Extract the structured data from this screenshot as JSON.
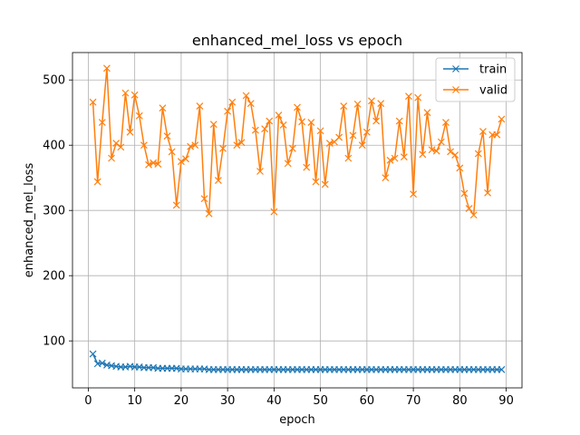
{
  "chart_data": {
    "type": "line",
    "title": "enhanced_mel_loss vs epoch",
    "xlabel": "epoch",
    "ylabel": "enhanced_mel_loss",
    "xlim": [
      -3.4,
      93.4
    ],
    "ylim": [
      28,
      542
    ],
    "xticks": [
      0,
      10,
      20,
      30,
      40,
      50,
      60,
      70,
      80,
      90
    ],
    "yticks": [
      100,
      200,
      300,
      400,
      500
    ],
    "grid": true,
    "legend_position": "top-right",
    "marker": "x",
    "series": [
      {
        "name": "train",
        "color": "#1f77b4",
        "x": [
          1,
          2,
          3,
          4,
          5,
          6,
          7,
          8,
          9,
          10,
          11,
          12,
          13,
          14,
          15,
          16,
          17,
          18,
          19,
          20,
          21,
          22,
          23,
          24,
          25,
          26,
          27,
          28,
          29,
          30,
          31,
          32,
          33,
          34,
          35,
          36,
          37,
          38,
          39,
          40,
          41,
          42,
          43,
          44,
          45,
          46,
          47,
          48,
          49,
          50,
          51,
          52,
          53,
          54,
          55,
          56,
          57,
          58,
          59,
          60,
          61,
          62,
          63,
          64,
          65,
          66,
          67,
          68,
          69,
          70,
          71,
          72,
          73,
          74,
          75,
          76,
          77,
          78,
          79,
          80,
          81,
          82,
          83,
          84,
          85,
          86,
          87,
          88,
          89
        ],
        "values": [
          80,
          65,
          66,
          63,
          62,
          61,
          60,
          60,
          61,
          60,
          60,
          59,
          59,
          59,
          58,
          58,
          58,
          58,
          58,
          57,
          57,
          57,
          57,
          57,
          57,
          56,
          56,
          56,
          56,
          56,
          56,
          56,
          56,
          56,
          56,
          56,
          56,
          56,
          56,
          56,
          56,
          56,
          56,
          56,
          56,
          56,
          56,
          56,
          56,
          56,
          56,
          56,
          56,
          56,
          56,
          56,
          56,
          56,
          56,
          56,
          56,
          56,
          56,
          56,
          56,
          56,
          56,
          56,
          56,
          56,
          56,
          56,
          56,
          56,
          56,
          56,
          56,
          56,
          56,
          56,
          56,
          56,
          56,
          56,
          56,
          56,
          56,
          56,
          56
        ]
      },
      {
        "name": "valid",
        "color": "#ff7f0e",
        "x": [
          1,
          2,
          3,
          4,
          5,
          6,
          7,
          8,
          9,
          10,
          11,
          12,
          13,
          14,
          15,
          16,
          17,
          18,
          19,
          20,
          21,
          22,
          23,
          24,
          25,
          26,
          27,
          28,
          29,
          30,
          31,
          32,
          33,
          34,
          35,
          36,
          37,
          38,
          39,
          40,
          41,
          42,
          43,
          44,
          45,
          46,
          47,
          48,
          49,
          50,
          51,
          52,
          53,
          54,
          55,
          56,
          57,
          58,
          59,
          60,
          61,
          62,
          63,
          64,
          65,
          66,
          67,
          68,
          69,
          70,
          71,
          72,
          73,
          74,
          75,
          76,
          77,
          78,
          79,
          80,
          81,
          82,
          83,
          84,
          85,
          86,
          87,
          88,
          89
        ],
        "values": [
          466,
          344,
          435,
          518,
          380,
          403,
          397,
          480,
          420,
          477,
          445,
          400,
          370,
          373,
          371,
          457,
          414,
          390,
          308,
          375,
          379,
          398,
          400,
          460,
          318,
          295,
          432,
          346,
          395,
          452,
          466,
          400,
          404,
          476,
          464,
          423,
          360,
          425,
          437,
          298,
          446,
          431,
          372,
          395,
          458,
          436,
          366,
          435,
          344,
          422,
          340,
          403,
          405,
          412,
          460,
          380,
          415,
          463,
          400,
          420,
          468,
          437,
          464,
          350,
          377,
          380,
          437,
          382,
          475,
          325,
          473,
          386,
          450,
          393,
          391,
          405,
          435,
          390,
          385,
          365,
          326,
          303,
          293,
          387,
          421,
          327,
          416,
          416,
          440
        ]
      }
    ]
  }
}
